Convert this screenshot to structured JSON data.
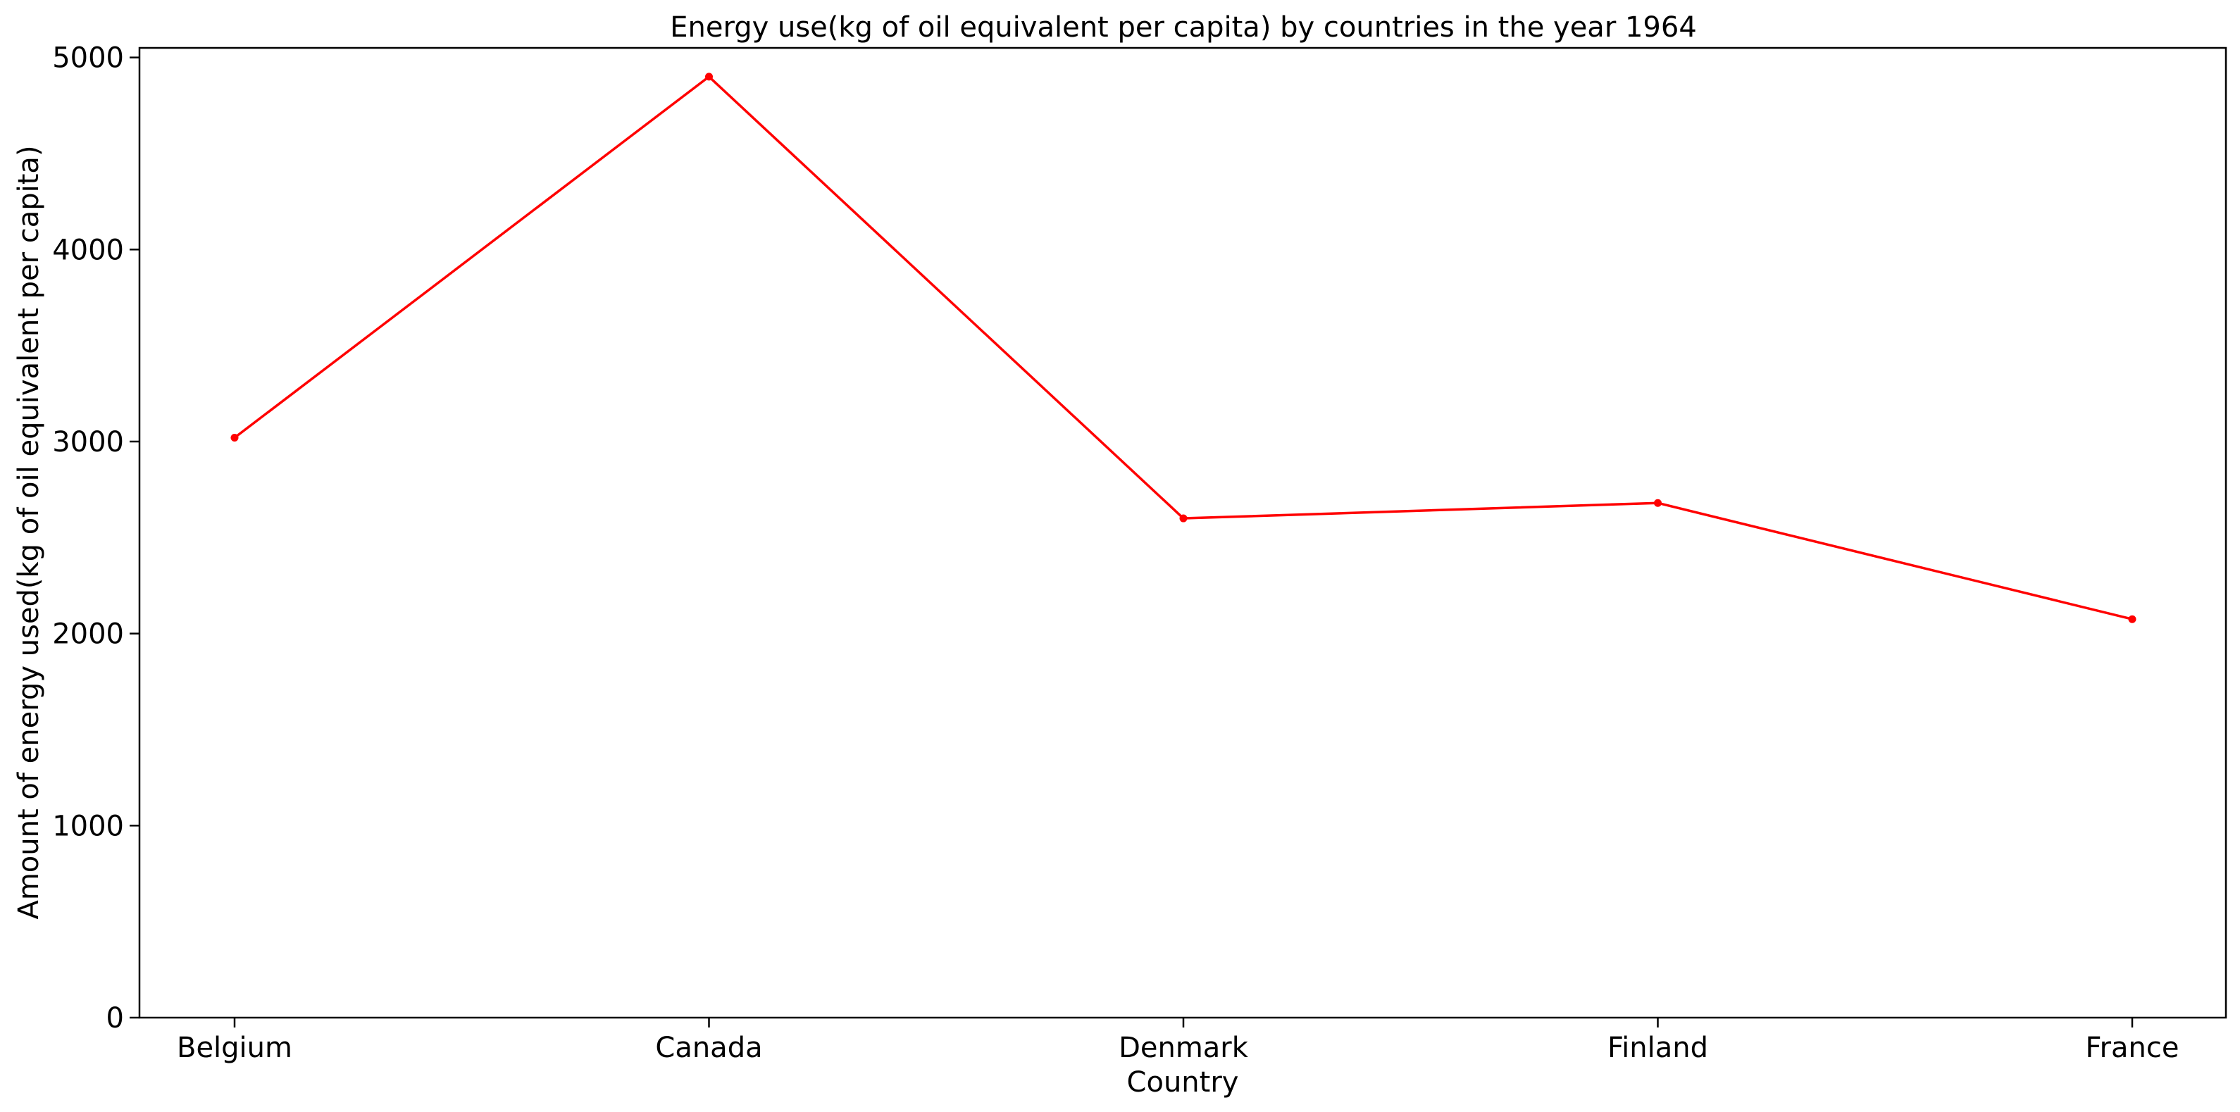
{
  "chart_data": {
    "type": "line",
    "title": "Energy use(kg of oil equivalent per capita) by countries in the year 1964",
    "xlabel": "Country",
    "ylabel": "Amount of energy used(kg of oil equivalent per capita)",
    "categories": [
      "Belgium",
      "Canada",
      "Denmark",
      "Finland",
      "France"
    ],
    "series": [
      {
        "values": [
          3020,
          4900,
          2600,
          2680,
          2075
        ],
        "color": "#ff0000",
        "marker": "dot"
      }
    ],
    "ylim": [
      0,
      5050
    ],
    "yticks": [
      0,
      1000,
      2000,
      3000,
      4000,
      5000
    ],
    "grid": false,
    "legend": "none"
  }
}
